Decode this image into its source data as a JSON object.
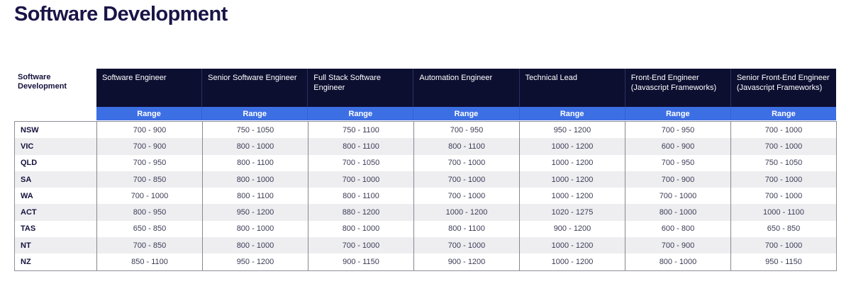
{
  "page_title": "Software Development",
  "table": {
    "corner_label": "Software Development",
    "columns": [
      {
        "label": "Software Engineer",
        "subheader": "Range"
      },
      {
        "label": "Senior Software Engineer",
        "subheader": "Range"
      },
      {
        "label": "Full Stack Software Engineer",
        "subheader": "Range"
      },
      {
        "label": "Automation Engineer",
        "subheader": "Range"
      },
      {
        "label": "Technical Lead",
        "subheader": "Range"
      },
      {
        "label": "Front-End Engineer (Javascript Frameworks)",
        "subheader": "Range"
      },
      {
        "label": "Senior Front-End Engineer (Javascript Frameworks)",
        "subheader": "Range"
      }
    ],
    "rows": [
      {
        "region": "NSW",
        "values": [
          "700 - 900",
          "750 - 1050",
          "750 - 1100",
          "700 - 950",
          "950 - 1200",
          "700 - 950",
          "700 - 1000"
        ]
      },
      {
        "region": "VIC",
        "values": [
          "700 - 900",
          "800 - 1000",
          "800 - 1100",
          "800 - 1100",
          "1000 - 1200",
          "600 - 900",
          "700 - 1000"
        ]
      },
      {
        "region": "QLD",
        "values": [
          "700 - 950",
          "800 - 1100",
          "700 - 1050",
          "700 - 1000",
          "1000 - 1200",
          "700 - 950",
          "750 - 1050"
        ]
      },
      {
        "region": "SA",
        "values": [
          "700 - 850",
          "800 - 1000",
          "700 - 1000",
          "700 - 1000",
          "1000 - 1200",
          "700 - 900",
          "700 - 1000"
        ]
      },
      {
        "region": "WA",
        "values": [
          "700 - 1000",
          "800 - 1100",
          "800 - 1100",
          "700 - 1000",
          "1000 - 1200",
          "700 - 1000",
          "700 - 1000"
        ]
      },
      {
        "region": "ACT",
        "values": [
          "800 - 950",
          "950 - 1200",
          "880 - 1200",
          "1000 - 1200",
          "1020 - 1275",
          "800 - 1000",
          "1000 - 1100"
        ]
      },
      {
        "region": "TAS",
        "values": [
          "650 - 850",
          "800 - 1000",
          "800 - 1000",
          "800 - 1100",
          "900 - 1200",
          "600 - 800",
          "650 - 850"
        ]
      },
      {
        "region": "NT",
        "values": [
          "700 - 850",
          "800 - 1000",
          "700 - 1000",
          "700 - 1000",
          "1000 - 1200",
          "700 - 900",
          "700 - 1000"
        ]
      },
      {
        "region": "NZ",
        "values": [
          "850 - 1100",
          "950 - 1200",
          "900 - 1150",
          "900 - 1200",
          "1000 - 1200",
          "800 - 1000",
          "950 - 1150"
        ]
      }
    ]
  },
  "colors": {
    "header_bg": "#0D0F31",
    "range_bg": "#3D6FE4",
    "alt_row_bg": "#EEEEF1",
    "border": "#8F8F99",
    "title_text": "#1A1547"
  },
  "chart_data": {
    "type": "table",
    "title": "Software Development",
    "row_header": "Software Development",
    "columns": [
      "Software Engineer",
      "Senior Software Engineer",
      "Full Stack Software Engineer",
      "Automation Engineer",
      "Technical Lead",
      "Front-End Engineer (Javascript Frameworks)",
      "Senior Front-End Engineer (Javascript Frameworks)"
    ],
    "subheader_per_column": "Range",
    "rows": [
      {
        "region": "NSW",
        "ranges": [
          [
            700,
            900
          ],
          [
            750,
            1050
          ],
          [
            750,
            1100
          ],
          [
            700,
            950
          ],
          [
            950,
            1200
          ],
          [
            700,
            950
          ],
          [
            700,
            1000
          ]
        ]
      },
      {
        "region": "VIC",
        "ranges": [
          [
            700,
            900
          ],
          [
            800,
            1000
          ],
          [
            800,
            1100
          ],
          [
            800,
            1100
          ],
          [
            1000,
            1200
          ],
          [
            600,
            900
          ],
          [
            700,
            1000
          ]
        ]
      },
      {
        "region": "QLD",
        "ranges": [
          [
            700,
            950
          ],
          [
            800,
            1100
          ],
          [
            700,
            1050
          ],
          [
            700,
            1000
          ],
          [
            1000,
            1200
          ],
          [
            700,
            950
          ],
          [
            750,
            1050
          ]
        ]
      },
      {
        "region": "SA",
        "ranges": [
          [
            700,
            850
          ],
          [
            800,
            1000
          ],
          [
            700,
            1000
          ],
          [
            700,
            1000
          ],
          [
            1000,
            1200
          ],
          [
            700,
            900
          ],
          [
            700,
            1000
          ]
        ]
      },
      {
        "region": "WA",
        "ranges": [
          [
            700,
            1000
          ],
          [
            800,
            1100
          ],
          [
            800,
            1100
          ],
          [
            700,
            1000
          ],
          [
            1000,
            1200
          ],
          [
            700,
            1000
          ],
          [
            700,
            1000
          ]
        ]
      },
      {
        "region": "ACT",
        "ranges": [
          [
            800,
            950
          ],
          [
            950,
            1200
          ],
          [
            880,
            1200
          ],
          [
            1000,
            1200
          ],
          [
            1020,
            1275
          ],
          [
            800,
            1000
          ],
          [
            1000,
            1100
          ]
        ]
      },
      {
        "region": "TAS",
        "ranges": [
          [
            650,
            850
          ],
          [
            800,
            1000
          ],
          [
            800,
            1000
          ],
          [
            800,
            1100
          ],
          [
            900,
            1200
          ],
          [
            600,
            800
          ],
          [
            650,
            850
          ]
        ]
      },
      {
        "region": "NT",
        "ranges": [
          [
            700,
            850
          ],
          [
            800,
            1000
          ],
          [
            700,
            1000
          ],
          [
            700,
            1000
          ],
          [
            1000,
            1200
          ],
          [
            700,
            900
          ],
          [
            700,
            1000
          ]
        ]
      },
      {
        "region": "NZ",
        "ranges": [
          [
            850,
            1100
          ],
          [
            950,
            1200
          ],
          [
            900,
            1150
          ],
          [
            900,
            1200
          ],
          [
            1000,
            1200
          ],
          [
            800,
            1000
          ],
          [
            950,
            1150
          ]
        ]
      }
    ]
  }
}
